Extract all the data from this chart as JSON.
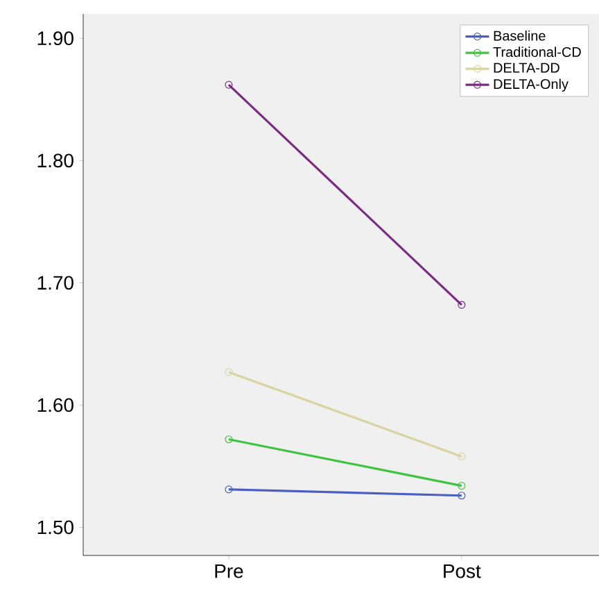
{
  "chart_data": {
    "type": "line",
    "categories": [
      "Pre",
      "Post"
    ],
    "series": [
      {
        "name": "Baseline",
        "color": "#4a5fc0",
        "values": [
          1.531,
          1.526
        ]
      },
      {
        "name": "Traditional-CD",
        "color": "#3ec43e",
        "values": [
          1.572,
          1.534
        ]
      },
      {
        "name": "DELTA-DD",
        "color": "#d8d4a2",
        "values": [
          1.627,
          1.558
        ]
      },
      {
        "name": "DELTA-Only",
        "color": "#7b2a82",
        "values": [
          1.862,
          1.682
        ]
      }
    ],
    "ylim": [
      1.477,
      1.92
    ],
    "yticks": [
      {
        "value": 1.5,
        "label": "1.50"
      },
      {
        "value": 1.6,
        "label": "1.60"
      },
      {
        "value": 1.7,
        "label": "1.70"
      },
      {
        "value": 1.8,
        "label": "1.80"
      },
      {
        "value": 1.9,
        "label": "1.90"
      }
    ],
    "marker": "circle",
    "legend": "top right",
    "grid": false
  }
}
